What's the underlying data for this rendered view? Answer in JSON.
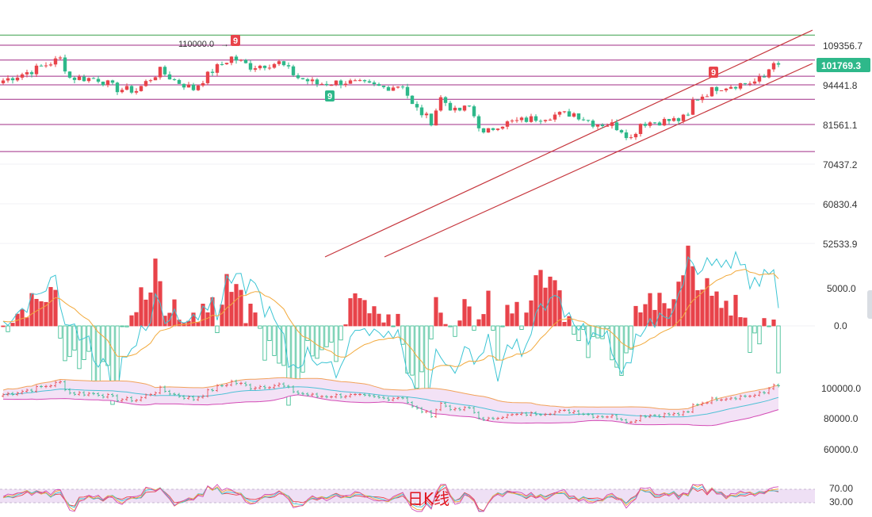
{
  "chart_data": {
    "type": "candlestick",
    "panels": [
      {
        "name": "price",
        "y_axis_ticks": [
          "109356.7",
          "94441.8",
          "81561.1",
          "70437.2",
          "60830.4",
          "52533.9"
        ],
        "current_price_tag": "101769.3",
        "annotations": [
          "110000.0"
        ],
        "td_markers": [
          "9",
          "9",
          "9"
        ],
        "horizontal_levels": [
          113500,
          109356.7,
          103500,
          97500,
          94441.8,
          89500,
          81561.1,
          73800
        ],
        "trend_channel": {
          "upper": [
            [
              410,
              324
            ],
            [
              1025,
              38
            ]
          ],
          "lower": [
            [
              485,
              324
            ],
            [
              1025,
              80
            ]
          ]
        }
      },
      {
        "name": "macd",
        "y_axis_ticks": [
          "5000.0",
          "0.0"
        ]
      },
      {
        "name": "bollinger",
        "y_axis_ticks": [
          "100000.0",
          "80000.0",
          "60000.0"
        ]
      },
      {
        "name": "rsi",
        "y_axis_ticks": [
          "70.00",
          "30.00"
        ],
        "watermark": "日K线"
      }
    ]
  },
  "colors": {
    "up": "#e8434a",
    "down": "#2eb88a",
    "level_line": "#a02c86",
    "top_line": "#3aa04a",
    "channel": "#c6363d",
    "price_tag_bg": "#2eb88a",
    "marker_red": "#e8434a",
    "marker_green": "#2eb88a",
    "macd_fast": "#3cc5d4",
    "macd_slow": "#f2a93b",
    "boll_upper": "#f2a25a",
    "boll_lower": "#d34bb5",
    "boll_mid": "#4fc1d6",
    "boll_fill": "#f3e2f6",
    "rsi_band": "#efe0f5"
  },
  "icons": {
    "side_handle": "collapse-handle-icon"
  }
}
